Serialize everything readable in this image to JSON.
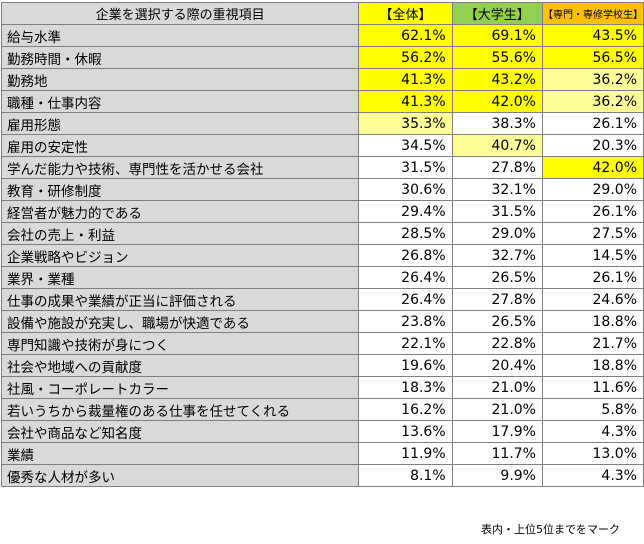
{
  "table": {
    "headers": [
      "企業を選択する際の重視項目",
      "【全体】",
      "【大学生】",
      "【専門・専修学校生】"
    ],
    "rows": [
      {
        "label": "給与水準",
        "values": [
          "62.1%",
          "69.1%",
          "43.5%"
        ],
        "marks": [
          "y",
          "y",
          "y"
        ]
      },
      {
        "label": "勤務時間・休暇",
        "values": [
          "56.2%",
          "55.6%",
          "56.5%"
        ],
        "marks": [
          "y",
          "y",
          "y"
        ]
      },
      {
        "label": "勤務地",
        "values": [
          "41.3%",
          "43.2%",
          "36.2%"
        ],
        "marks": [
          "y",
          "y",
          "p"
        ]
      },
      {
        "label": "職種・仕事内容",
        "values": [
          "41.3%",
          "42.0%",
          "36.2%"
        ],
        "marks": [
          "y",
          "y",
          "p"
        ]
      },
      {
        "label": "雇用形態",
        "values": [
          "35.3%",
          "38.3%",
          "26.1%"
        ],
        "marks": [
          "p",
          "",
          ""
        ]
      },
      {
        "label": "雇用の安定性",
        "values": [
          "34.5%",
          "40.7%",
          "20.3%"
        ],
        "marks": [
          "",
          "p",
          ""
        ]
      },
      {
        "label": "学んだ能力や技術、専門性を活かせる会社",
        "values": [
          "31.5%",
          "27.8%",
          "42.0%"
        ],
        "marks": [
          "",
          "",
          "y"
        ]
      },
      {
        "label": "教育・研修制度",
        "values": [
          "30.6%",
          "32.1%",
          "29.0%"
        ],
        "marks": [
          "",
          "",
          ""
        ]
      },
      {
        "label": "経営者が魅力的である",
        "values": [
          "29.4%",
          "31.5%",
          "26.1%"
        ],
        "marks": [
          "",
          "",
          ""
        ]
      },
      {
        "label": "会社の売上・利益",
        "values": [
          "28.5%",
          "29.0%",
          "27.5%"
        ],
        "marks": [
          "",
          "",
          ""
        ]
      },
      {
        "label": "企業戦略やビジョン",
        "values": [
          "26.8%",
          "32.7%",
          "14.5%"
        ],
        "marks": [
          "",
          "",
          ""
        ]
      },
      {
        "label": "業界・業種",
        "values": [
          "26.4%",
          "26.5%",
          "26.1%"
        ],
        "marks": [
          "",
          "",
          ""
        ]
      },
      {
        "label": "仕事の成果や業績が正当に評価される",
        "values": [
          "26.4%",
          "27.8%",
          "24.6%"
        ],
        "marks": [
          "",
          "",
          ""
        ]
      },
      {
        "label": "設備や施設が充実し、職場が快適である",
        "values": [
          "23.8%",
          "26.5%",
          "18.8%"
        ],
        "marks": [
          "",
          "",
          ""
        ]
      },
      {
        "label": "専門知識や技術が身につく",
        "values": [
          "22.1%",
          "22.8%",
          "21.7%"
        ],
        "marks": [
          "",
          "",
          ""
        ]
      },
      {
        "label": "社会や地域への貢献度",
        "values": [
          "19.6%",
          "20.4%",
          "18.8%"
        ],
        "marks": [
          "",
          "",
          ""
        ]
      },
      {
        "label": "社風・コーポレートカラー",
        "values": [
          "18.3%",
          "21.0%",
          "11.6%"
        ],
        "marks": [
          "",
          "",
          ""
        ]
      },
      {
        "label": "若いうちから裁量権のある仕事を任せてくれる",
        "values": [
          "16.2%",
          "21.0%",
          "5.8%"
        ],
        "marks": [
          "",
          "",
          ""
        ]
      },
      {
        "label": "会社や商品など知名度",
        "values": [
          "13.6%",
          "17.9%",
          "4.3%"
        ],
        "marks": [
          "",
          "",
          ""
        ]
      },
      {
        "label": "業績",
        "values": [
          "11.9%",
          "11.7%",
          "13.0%"
        ],
        "marks": [
          "",
          "",
          ""
        ]
      },
      {
        "label": "優秀な人材が多い",
        "values": [
          "8.1%",
          "9.9%",
          "4.3%"
        ],
        "marks": [
          "",
          "",
          ""
        ]
      }
    ]
  },
  "note": "表内・上位5位までをマーク",
  "colors": {
    "header_gray": "#d9d9d9",
    "header_all": "#ffff00",
    "header_univ": "#92d050",
    "header_vocational": "#ffc000",
    "top_mark": "#ffff00",
    "rank5_mark": "#ffff99"
  }
}
